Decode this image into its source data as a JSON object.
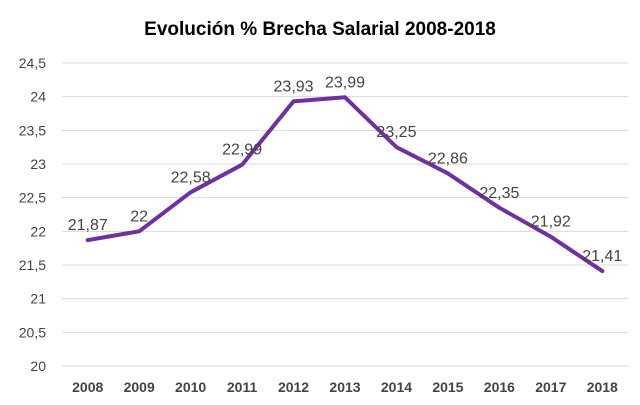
{
  "chart_data": {
    "type": "line",
    "title": "Evolución % Brecha Salarial 2008-2018",
    "xlabel": "",
    "ylabel": "",
    "ylim": [
      20,
      24.5
    ],
    "grid": true,
    "legend": "none",
    "y_ticks": [
      "20",
      "20,5",
      "21",
      "21,5",
      "22",
      "22,5",
      "23",
      "23,5",
      "24",
      "24,5"
    ],
    "categories": [
      "2008",
      "2009",
      "2010",
      "2011",
      "2012",
      "2013",
      "2014",
      "2015",
      "2016",
      "2017",
      "2018"
    ],
    "values": [
      21.87,
      22,
      22.58,
      22.99,
      23.93,
      23.99,
      23.25,
      22.86,
      22.35,
      21.92,
      21.41
    ],
    "value_labels": [
      "21,87",
      "22",
      "22,58",
      "22,99",
      "23,93",
      "23,99",
      "23,25",
      "22,86",
      "22,35",
      "21,92",
      "21,41"
    ],
    "line_color": "#7030a0",
    "label_color": "#444444",
    "grid_color": "#d9d9d9"
  }
}
